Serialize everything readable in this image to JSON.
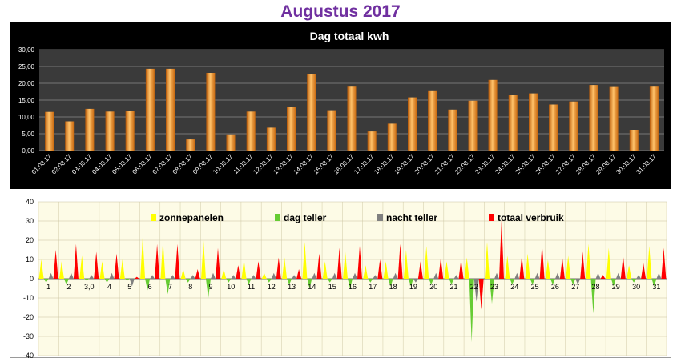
{
  "page": {
    "title": "Augustus 2017"
  },
  "colors": {
    "bar_orange": "#f39a2a",
    "zonnepanelen": "#ffff00",
    "dag_teller": "#66cc33",
    "nacht_teller": "#808080",
    "totaal_verbruik": "#ff0000",
    "chart1_background": "#000000",
    "chart2_background": "#fdfbe6"
  },
  "chart_data": [
    {
      "type": "bar",
      "title": "Dag totaal kwh",
      "xlabel": "",
      "ylabel": "",
      "ylim": [
        0,
        30
      ],
      "yticks": [
        "0,00",
        "5,00",
        "10,00",
        "15,00",
        "20,00",
        "25,00",
        "30,00"
      ],
      "grid": true,
      "categories": [
        "01.08.17",
        "02.08.17",
        "03.08.17",
        "04.08.17",
        "05.08.17",
        "06.08.17",
        "07.08.17",
        "08.08.17",
        "09.08.17",
        "10.08.17",
        "11.08.17",
        "12.08.17",
        "13.08.17",
        "14.08.17",
        "15.08.17",
        "16.08.17",
        "17.08.17",
        "18.08.17",
        "19.08.17",
        "20.08.17",
        "21.08.17",
        "22.08.17",
        "23.08.17",
        "24.08.17",
        "25.08.17",
        "26.08.17",
        "27.08.17",
        "28.08.17",
        "29.08.17",
        "30.08.17",
        "31.08.17"
      ],
      "values": [
        11.5,
        8.7,
        12.4,
        11.6,
        11.9,
        24.3,
        24.3,
        3.3,
        23.1,
        4.8,
        11.6,
        6.8,
        12.9,
        22.7,
        12.0,
        19.0,
        5.7,
        8.0,
        15.8,
        17.9,
        12.2,
        14.8,
        21.0,
        16.6,
        17.0,
        13.7,
        14.6,
        19.5,
        18.9,
        6.2,
        19.0
      ]
    },
    {
      "type": "area",
      "title": "",
      "xlabel": "",
      "ylabel": "",
      "ylim": [
        -40,
        40
      ],
      "yticks": [
        "-40",
        "-30",
        "-20",
        "-10",
        "0",
        "10",
        "20",
        "30",
        "40"
      ],
      "grid": true,
      "legend": "top",
      "x_labels": [
        "1",
        "2",
        "3,0",
        "4",
        "5",
        "6",
        "7",
        "8",
        "9",
        "10",
        "11",
        "12",
        "13",
        "14",
        "15",
        "16",
        "17",
        "18",
        "19",
        "20",
        "21",
        "22",
        "23",
        "24",
        "25",
        "26",
        "27",
        "28",
        "29",
        "30",
        "31"
      ],
      "series": [
        {
          "name": "zonnepanelen",
          "values": [
            10,
            9,
            12,
            9,
            10,
            22,
            20,
            5,
            20,
            5,
            10,
            3,
            11,
            19,
            9,
            14,
            7,
            9,
            15,
            17,
            9,
            11,
            19,
            12,
            13,
            10,
            12,
            18,
            16,
            7,
            17
          ]
        },
        {
          "name": "dag teller",
          "values": [
            -2,
            -3,
            -1,
            -2,
            -1,
            -6,
            -8,
            -2,
            -10,
            -2,
            -3,
            -2,
            -3,
            -5,
            -2,
            -5,
            -2,
            -4,
            -4,
            -3,
            -3,
            -33,
            -13,
            -3,
            -3,
            -3,
            -3,
            -18,
            -4,
            -2,
            -4
          ]
        },
        {
          "name": "nacht teller",
          "values": [
            3,
            3,
            2,
            3,
            -4,
            2,
            2,
            2,
            3,
            2,
            2,
            3,
            2,
            3,
            3,
            3,
            2,
            3,
            -2,
            3,
            2,
            -12,
            3,
            3,
            3,
            3,
            -3,
            3,
            3,
            2,
            3
          ]
        },
        {
          "name": "totaal verbruik",
          "values": [
            15,
            18,
            14,
            13,
            1,
            18,
            18,
            5,
            16,
            7,
            9,
            11,
            5,
            13,
            16,
            17,
            10,
            18,
            9,
            11,
            10,
            -16,
            31,
            12,
            18,
            11,
            14,
            2,
            12,
            8,
            16
          ]
        }
      ]
    }
  ]
}
